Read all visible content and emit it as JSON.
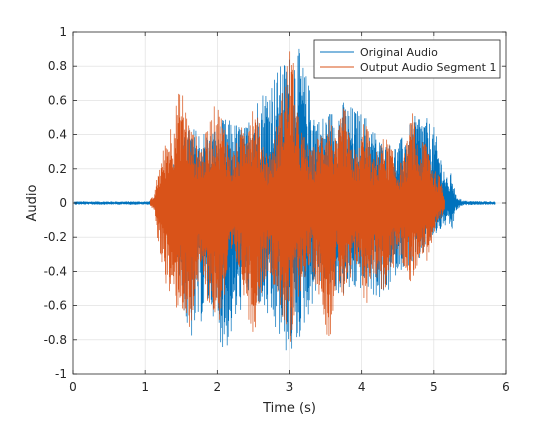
{
  "chart_data": {
    "type": "line",
    "title": "",
    "xlabel": "Time (s)",
    "ylabel": "Audio",
    "xlim": [
      0,
      6
    ],
    "ylim": [
      -1,
      1
    ],
    "xticks": [
      0,
      1,
      2,
      3,
      4,
      5,
      6
    ],
    "yticks": [
      -1,
      -0.8,
      -0.6,
      -0.4,
      -0.2,
      0,
      0.2,
      0.4,
      0.6,
      0.8,
      1
    ],
    "xtick_labels": [
      "0",
      "1",
      "2",
      "3",
      "4",
      "5",
      "6"
    ],
    "ytick_labels": [
      "-1",
      "-0.8",
      "-0.6",
      "-0.4",
      "-0.2",
      "0",
      "0.2",
      "0.4",
      "0.6",
      "0.8",
      "1"
    ],
    "grid": true,
    "legend": {
      "location": "top-right",
      "entries": [
        "Original Audio",
        "Output Audio Segment 1"
      ]
    },
    "series": [
      {
        "name": "Original Audio",
        "color": "#0072BD",
        "x": [
          0.02,
          1.05,
          1.1,
          1.25,
          1.5,
          1.6,
          1.9,
          2.1,
          2.4,
          2.5,
          3.0,
          3.1,
          3.4,
          3.75,
          4.05,
          4.3,
          4.5,
          4.8,
          5.0,
          5.2,
          5.25,
          5.3,
          5.4,
          5.5,
          5.85
        ],
        "y_upper": [
          0.01,
          0.01,
          0.015,
          0.1,
          0.35,
          0.45,
          0.42,
          0.5,
          0.45,
          0.6,
          0.88,
          0.95,
          0.5,
          0.6,
          0.52,
          0.35,
          0.35,
          0.55,
          0.45,
          0.12,
          0.2,
          0.05,
          0.015,
          0.012,
          0.01
        ],
        "y_lower": [
          -0.01,
          -0.01,
          -0.015,
          -0.1,
          -0.5,
          -0.85,
          -0.6,
          -0.9,
          -0.55,
          -0.55,
          -0.92,
          -0.85,
          -0.5,
          -0.55,
          -0.5,
          -0.6,
          -0.4,
          -0.35,
          -0.2,
          -0.12,
          -0.18,
          -0.05,
          -0.015,
          -0.012,
          -0.01
        ]
      },
      {
        "name": "Output Audio Segment 1",
        "color": "#D95319",
        "x": [
          1.07,
          1.13,
          1.18,
          1.3,
          1.4,
          1.5,
          1.56,
          1.63,
          1.7,
          1.8,
          1.93,
          2.0,
          2.12,
          2.2,
          2.3,
          2.42,
          2.5,
          2.6,
          2.7,
          2.8,
          2.95,
          3.02,
          3.1,
          3.2,
          3.3,
          3.45,
          3.55,
          3.65,
          3.75,
          3.85,
          3.95,
          4.05,
          4.15,
          4.25,
          4.32,
          4.4,
          4.5,
          4.6,
          4.7,
          4.8,
          4.9,
          5.0,
          5.1,
          5.15
        ],
        "y_upper": [
          0.02,
          0.05,
          0.2,
          0.4,
          0.55,
          0.7,
          0.6,
          0.45,
          0.4,
          0.35,
          0.55,
          0.6,
          0.45,
          0.3,
          0.38,
          0.6,
          0.62,
          0.45,
          0.28,
          0.4,
          0.8,
          1.0,
          0.55,
          0.4,
          0.3,
          0.45,
          0.55,
          0.35,
          0.6,
          0.35,
          0.3,
          0.55,
          0.25,
          0.35,
          0.4,
          0.35,
          0.2,
          0.3,
          0.55,
          0.3,
          0.42,
          0.2,
          0.15,
          0.04
        ],
        "y_lower": [
          -0.02,
          -0.05,
          -0.25,
          -0.5,
          -0.65,
          -0.6,
          -0.75,
          -0.85,
          -0.5,
          -0.5,
          -0.65,
          -0.75,
          -0.55,
          -0.35,
          -0.4,
          -0.65,
          -0.8,
          -0.55,
          -0.4,
          -0.5,
          -0.75,
          -0.93,
          -0.6,
          -0.45,
          -0.4,
          -0.6,
          -0.85,
          -0.45,
          -0.6,
          -0.5,
          -0.35,
          -0.65,
          -0.4,
          -0.5,
          -0.55,
          -0.45,
          -0.3,
          -0.4,
          -0.5,
          -0.3,
          -0.35,
          -0.2,
          -0.12,
          -0.04
        ]
      }
    ]
  }
}
